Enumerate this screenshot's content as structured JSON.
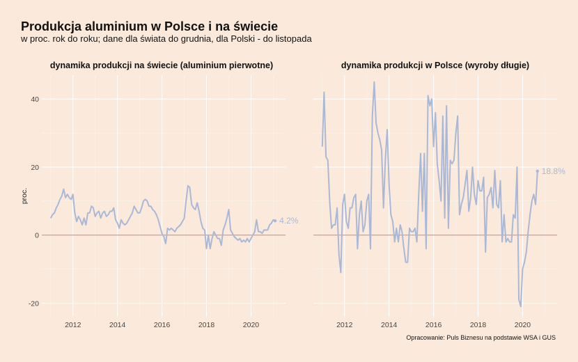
{
  "header": {
    "title": "Produkcja aluminium w Polsce i na świecie",
    "subtitle": "w proc. rok do roku; dane dla świata do grudnia, dla Polski - do listopada"
  },
  "caption": "Opracowanie: Puls Biznesu na podstawie WSA i GUS",
  "colors": {
    "background": "#fbeadb",
    "line": "#aab8d6",
    "zero_line": "#d98a82",
    "grid": "#ffffff"
  },
  "chart_data": [
    {
      "type": "line",
      "title": "dynamika produkcji na świecie (aluminium pierwotne)",
      "ylabel": "proc.",
      "xlim": [
        2010.6,
        2021.55
      ],
      "ylim": [
        -24,
        47
      ],
      "x_ticks": [
        "2012",
        "2014",
        "2016",
        "2018",
        "2020"
      ],
      "y_ticks": [
        "-20",
        "0",
        "20",
        "40"
      ],
      "end_label": "4.2%",
      "x_start": 2011.0,
      "x_step": 0.08333,
      "values": [
        5,
        6,
        6.5,
        8,
        9,
        10.5,
        11.5,
        13.5,
        11,
        12,
        11,
        10.5,
        12,
        6.5,
        4,
        5.5,
        4.5,
        3,
        5,
        3,
        6.5,
        6.5,
        8.5,
        8,
        5.5,
        6.5,
        7,
        5,
        6.5,
        7,
        5.5,
        6,
        7,
        7,
        8,
        4.5,
        3.5,
        2,
        4.5,
        3.5,
        3,
        3.5,
        4.5,
        5.5,
        6.5,
        8.5,
        7.5,
        6.5,
        6.5,
        8,
        10,
        10.5,
        10,
        8.5,
        8.5,
        7.5,
        7,
        6,
        4.5,
        2.5,
        0.5,
        -0.5,
        -2.5,
        2,
        1.5,
        2,
        1.5,
        1,
        2,
        2.5,
        3,
        4,
        5,
        10,
        14.5,
        14,
        9,
        8,
        7.5,
        9.5,
        7,
        4,
        2,
        1.5,
        -4,
        0,
        -4,
        -1,
        1,
        0,
        -1,
        -1,
        -3,
        1.5,
        3,
        5,
        7.5,
        1.5,
        0.5,
        -0.5,
        -1,
        -1.5,
        -1,
        -2,
        -1.5,
        -2,
        -1,
        -2,
        -1,
        0,
        1,
        4.5,
        1,
        1,
        0.5,
        1.5,
        1.5,
        1.5,
        3,
        3.5,
        4.5,
        4.2
      ]
    },
    {
      "type": "line",
      "title": "dynamika produkcji w Polsce (wyroby długie)",
      "ylabel": "",
      "xlim": [
        2010.6,
        2021.55
      ],
      "ylim": [
        -24,
        47
      ],
      "x_ticks": [
        "2012",
        "2014",
        "2016",
        "2018",
        "2020"
      ],
      "y_ticks": [],
      "end_label": "18.8%",
      "x_start": 2011.0,
      "x_step": 0.08333,
      "values": [
        26,
        42,
        23,
        22,
        10,
        2,
        3,
        3,
        8,
        -6,
        -11,
        9,
        12,
        4,
        2,
        8,
        8,
        11,
        12,
        -4,
        6,
        10,
        1,
        3,
        10,
        12,
        -4,
        35,
        45,
        33,
        30,
        28,
        25,
        8,
        22,
        31,
        15,
        6,
        4,
        -2,
        2,
        -2,
        3,
        1,
        -4,
        -8,
        -8,
        2,
        1,
        1,
        2,
        -2,
        12,
        24,
        7,
        24,
        -4,
        41,
        38,
        40,
        26,
        36,
        21,
        16,
        10,
        35,
        5,
        38,
        2,
        22,
        21,
        22,
        30,
        35,
        6,
        9,
        11,
        15,
        19,
        7,
        11,
        20,
        12,
        9,
        16,
        13,
        13,
        17,
        -5,
        11,
        12,
        14,
        8,
        19,
        9,
        8,
        16,
        -2,
        6,
        -2,
        -1,
        -2,
        -2,
        6,
        5,
        20,
        -19,
        -21,
        -10,
        -8,
        -5,
        1,
        6,
        10,
        12,
        9,
        18.8
      ]
    }
  ]
}
